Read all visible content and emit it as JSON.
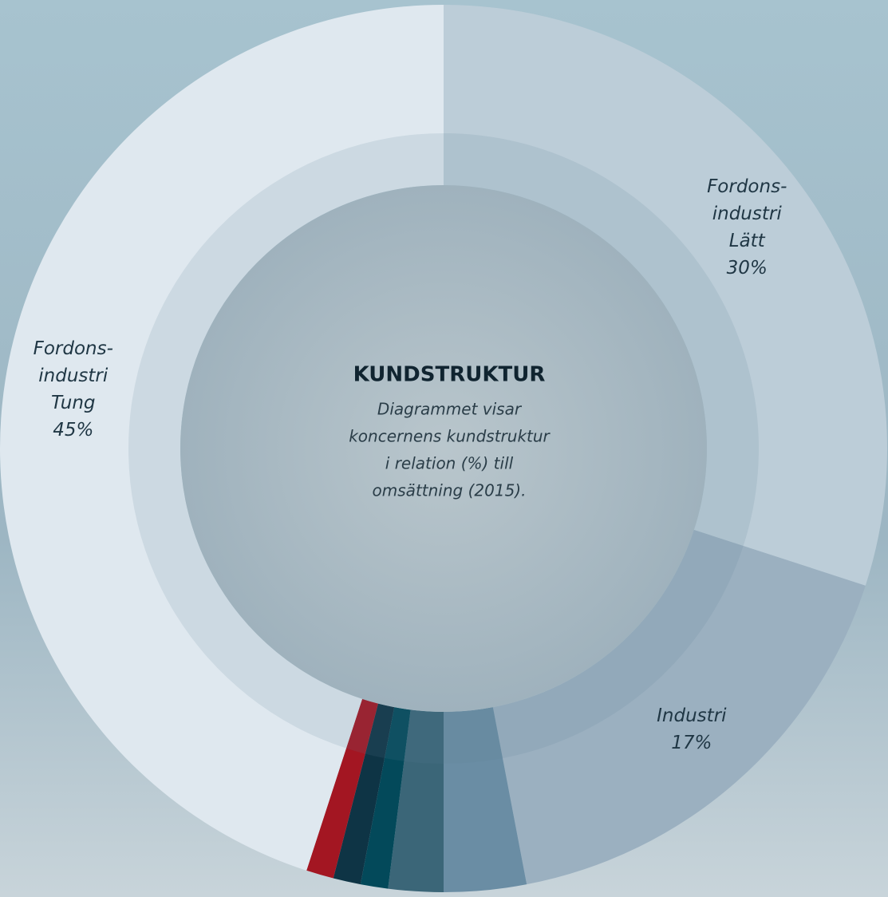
{
  "chart_data": {
    "type": "donut",
    "title": "KUNDSTRUKTUR",
    "subtitle": [
      "Diagrammet visar",
      "koncernens kundstruktur",
      "i relation (%) till",
      "omsättning (2015)."
    ],
    "categories": [
      [
        "Fordons-",
        "industri",
        "Lätt"
      ],
      [
        "Industri"
      ],
      null,
      null,
      null,
      null,
      null,
      [
        "Fordons-",
        "industri",
        "Tung"
      ]
    ],
    "values": [
      30,
      17,
      3,
      2,
      1,
      1,
      1,
      45
    ],
    "value_labels": [
      "30%",
      "17%",
      null,
      null,
      null,
      null,
      null,
      "45%"
    ],
    "colors": [
      "#bccdd8",
      "#9bb0c0",
      "#6a8da4",
      "#3b6678",
      "#03495a",
      "#0e3445",
      "#a31622",
      "#dfe8ef"
    ]
  }
}
